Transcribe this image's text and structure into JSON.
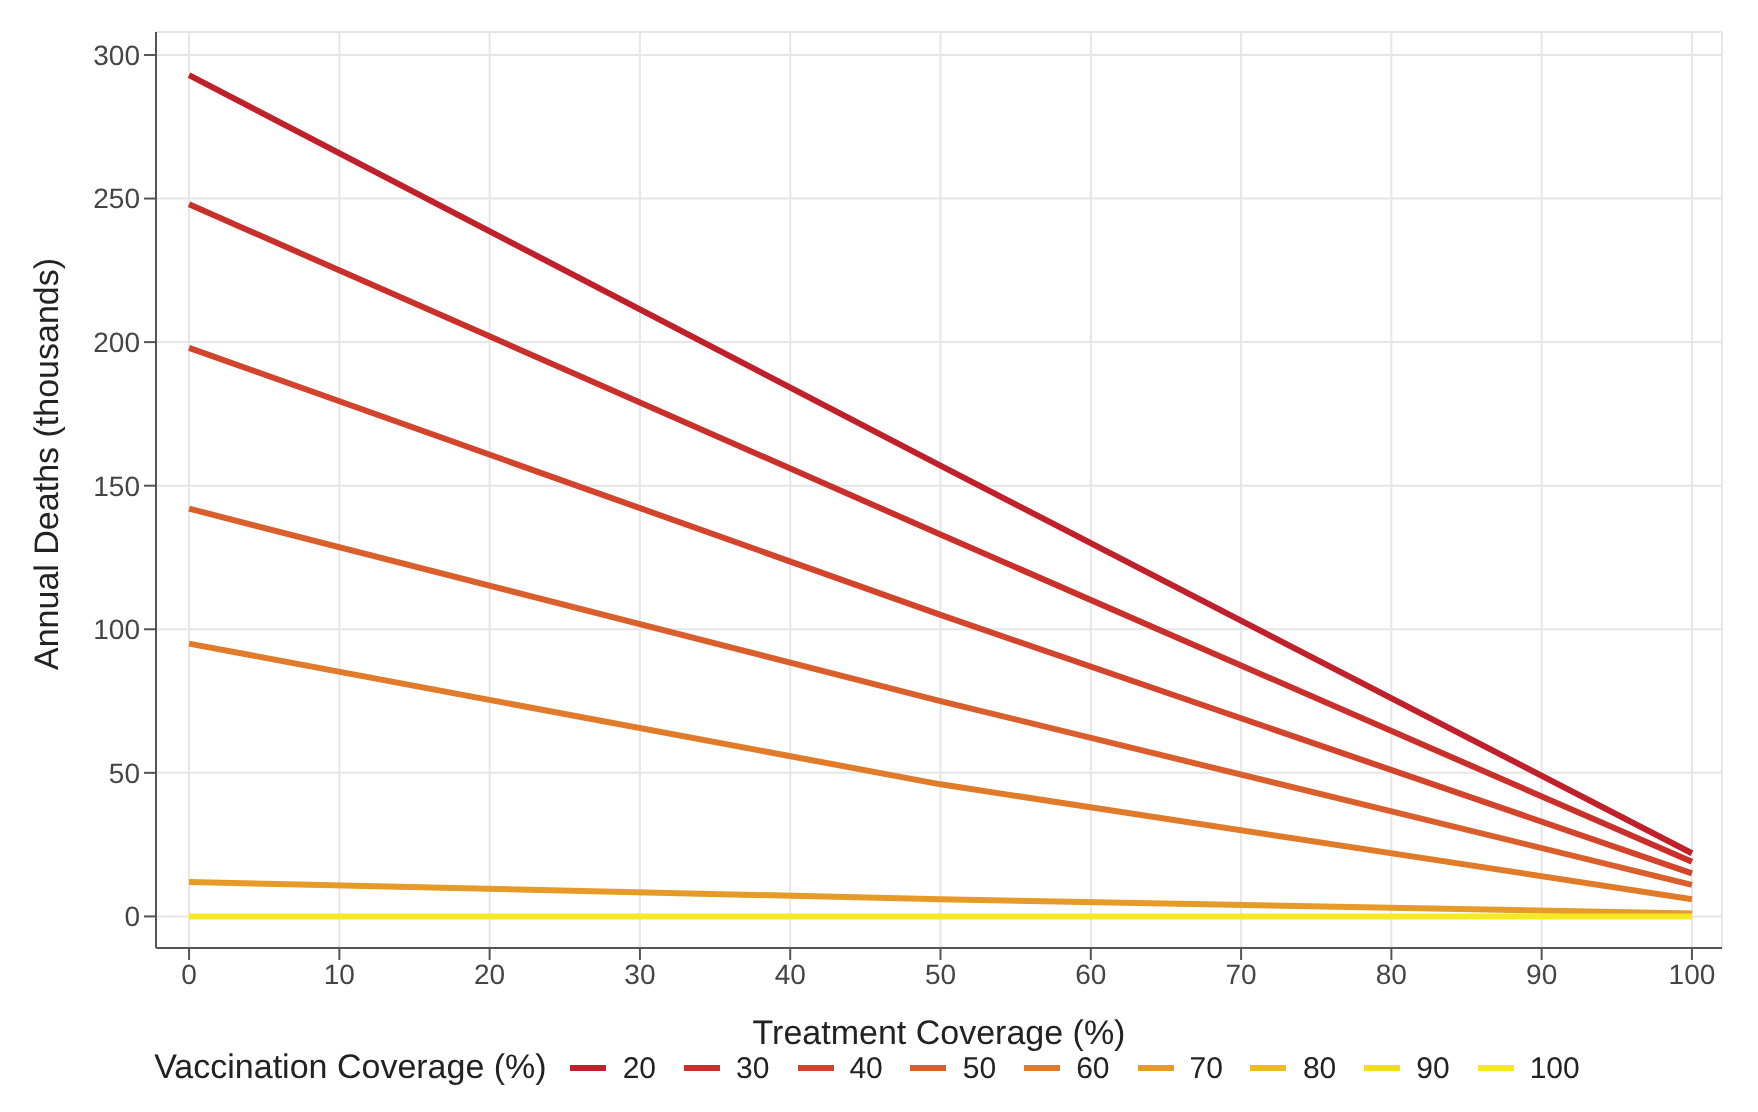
{
  "chart_data": {
    "type": "line",
    "xlabel": "Treatment Coverage (%)",
    "ylabel": "Annual Deaths (thousands)",
    "legend_title": "Vaccination Coverage (%)",
    "x": [
      0,
      50,
      100
    ],
    "series": [
      {
        "name": "20",
        "color": "#c0202a",
        "values": [
          293,
          157,
          22
        ]
      },
      {
        "name": "30",
        "color": "#c9302c",
        "values": [
          248,
          133,
          19
        ]
      },
      {
        "name": "40",
        "color": "#d2452c",
        "values": [
          198,
          105,
          15
        ]
      },
      {
        "name": "50",
        "color": "#d9602c",
        "values": [
          142,
          75,
          11
        ]
      },
      {
        "name": "60",
        "color": "#e07b2a",
        "values": [
          95,
          46,
          6
        ]
      },
      {
        "name": "70",
        "color": "#e69a28",
        "values": [
          12,
          6,
          1
        ]
      },
      {
        "name": "80",
        "color": "#ecbb22",
        "values": [
          null,
          null,
          null
        ]
      },
      {
        "name": "90",
        "color": "#f2dd1a",
        "values": [
          null,
          null,
          null
        ]
      },
      {
        "name": "100",
        "color": "#f5ea20",
        "values": [
          0,
          0,
          0
        ]
      }
    ],
    "xlim": [
      -2.2,
      102
    ],
    "xticks": [
      0,
      10,
      20,
      30,
      40,
      50,
      60,
      70,
      80,
      90,
      100
    ],
    "ylim": [
      -11,
      308
    ],
    "yticks": [
      0,
      50,
      100,
      150,
      200,
      250,
      300
    ],
    "grid": true,
    "legend": "bottom",
    "marker": "none",
    "line_style": "solid"
  }
}
